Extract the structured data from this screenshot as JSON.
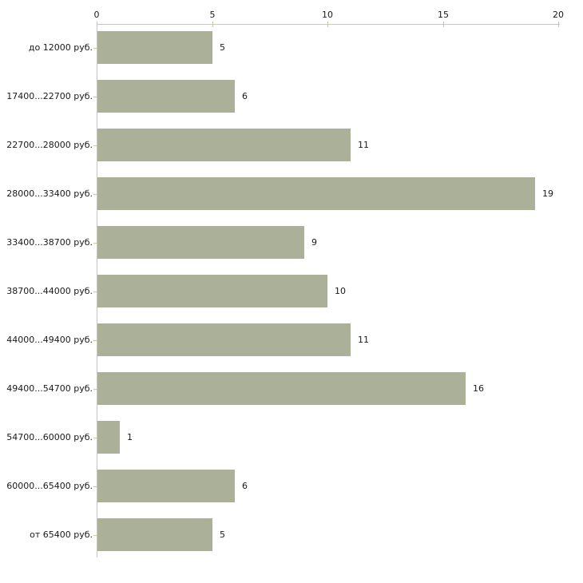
{
  "chart_data": {
    "type": "bar",
    "orientation": "horizontal",
    "title": "",
    "categories": [
      "до 12000 руб.",
      "17400...22700 руб.",
      "22700...28000 руб.",
      "28000...33400 руб.",
      "33400...38700 руб.",
      "38700...44000 руб.",
      "44000...49400 руб.",
      "49400...54700 руб.",
      "54700...60000 руб.",
      "60000...65400 руб.",
      "от 65400 руб."
    ],
    "values": [
      5,
      6,
      11,
      19,
      9,
      10,
      11,
      16,
      1,
      6,
      5
    ],
    "value_labels": [
      "5",
      "6",
      "11",
      "19",
      "9",
      "10",
      "11",
      "16",
      "1",
      "6",
      "5"
    ],
    "xlabel": "",
    "ylabel": "",
    "xlim": [
      0,
      20
    ],
    "x_ticks": [
      0,
      5,
      10,
      15,
      20
    ],
    "x_tick_labels": [
      "0",
      "5",
      "10",
      "15",
      "20"
    ],
    "axis_position": "top",
    "grid": false,
    "legend": false,
    "colors": {
      "bar_fill": "#ABB199",
      "axis_line": "#C6C6C6",
      "tick_mark": "#C9C99C",
      "text": "#1A1A1A",
      "background": "#FFFFFF"
    }
  }
}
